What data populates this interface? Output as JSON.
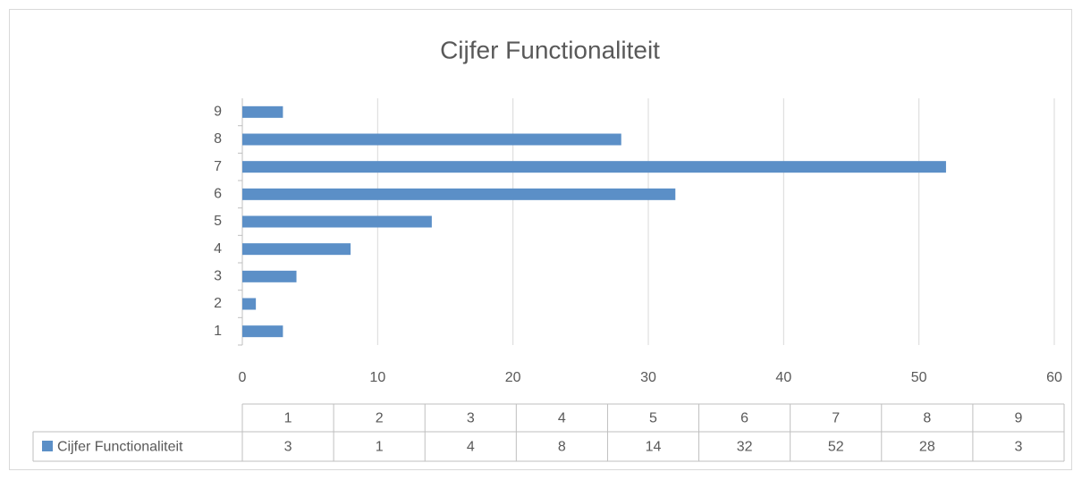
{
  "chart_data": {
    "type": "bar",
    "orientation": "horizontal",
    "title": "Cijfer Functionaliteit",
    "categories": [
      "1",
      "2",
      "3",
      "4",
      "5",
      "6",
      "7",
      "8",
      "9"
    ],
    "series": [
      {
        "name": "Cijfer Functionaliteit",
        "color": "#5b8fc7",
        "values": [
          3,
          1,
          4,
          8,
          14,
          32,
          52,
          28,
          3
        ]
      }
    ],
    "xlim": [
      0,
      60
    ],
    "xticks": [
      0,
      10,
      20,
      30,
      40,
      50,
      60
    ],
    "grid": true,
    "data_table": true
  }
}
